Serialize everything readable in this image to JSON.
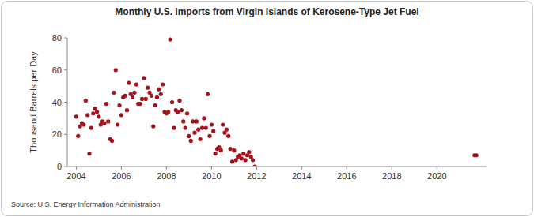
{
  "chart_data": {
    "type": "scatter",
    "title": "Monthly U.S. Imports from Virgin Islands of Kerosene-Type Jet Fuel",
    "y_label": "Thousand Barrels per Day",
    "source": "Source: U.S. Energy Information Administration",
    "x": [
      2004.0,
      2004.083,
      2004.167,
      2004.25,
      2004.333,
      2004.417,
      2004.5,
      2004.583,
      2004.667,
      2004.75,
      2004.833,
      2004.917,
      2005.0,
      2005.083,
      2005.167,
      2005.25,
      2005.333,
      2005.417,
      2005.5,
      2005.583,
      2005.667,
      2005.75,
      2005.833,
      2005.917,
      2006.0,
      2006.083,
      2006.167,
      2006.25,
      2006.333,
      2006.417,
      2006.5,
      2006.583,
      2006.667,
      2006.75,
      2006.833,
      2006.917,
      2007.0,
      2007.083,
      2007.167,
      2007.25,
      2007.333,
      2007.417,
      2007.5,
      2007.583,
      2007.667,
      2007.75,
      2007.833,
      2007.917,
      2008.0,
      2008.083,
      2008.167,
      2008.25,
      2008.333,
      2008.417,
      2008.5,
      2008.583,
      2008.667,
      2008.75,
      2008.833,
      2008.917,
      2009.0,
      2009.083,
      2009.167,
      2009.25,
      2009.333,
      2009.417,
      2009.5,
      2009.583,
      2009.667,
      2009.75,
      2009.833,
      2009.917,
      2010.0,
      2010.083,
      2010.167,
      2010.25,
      2010.333,
      2010.417,
      2010.5,
      2010.583,
      2010.667,
      2010.75,
      2010.833,
      2010.917,
      2011.0,
      2011.083,
      2011.167,
      2011.25,
      2011.333,
      2011.417,
      2011.5,
      2011.583,
      2011.667,
      2011.75,
      2011.833,
      2011.917,
      2021.667,
      2021.75
    ],
    "values": [
      31,
      19,
      25,
      27,
      26,
      41,
      32,
      8,
      24,
      33,
      36,
      34,
      31,
      26,
      28,
      27,
      39,
      28,
      17,
      16,
      46,
      60,
      26,
      38,
      32,
      43,
      44,
      35,
      52,
      45,
      43,
      46,
      51,
      39,
      39,
      42,
      55,
      42,
      49,
      46,
      44,
      25,
      38,
      43,
      48,
      45,
      51,
      34,
      33,
      34,
      79,
      40,
      24,
      35,
      34,
      41,
      35,
      28,
      24,
      33,
      19,
      16,
      28,
      21,
      28,
      23,
      17,
      24,
      30,
      24,
      45,
      19,
      26,
      22,
      8,
      11,
      12,
      10,
      26,
      21,
      23,
      19,
      11,
      3,
      10,
      4,
      6,
      7,
      5,
      8,
      4,
      7,
      9,
      6,
      4,
      0,
      7,
      7
    ],
    "color": "#a6121b",
    "marker": "circle",
    "xlim": [
      2003.6,
      2022.2
    ],
    "xticks": [
      2004,
      2006,
      2008,
      2010,
      2012,
      2014,
      2016,
      2018,
      2020
    ],
    "ylim": [
      0,
      80
    ],
    "yticks": [
      0,
      20,
      40,
      60,
      80
    ],
    "grid": false
  }
}
